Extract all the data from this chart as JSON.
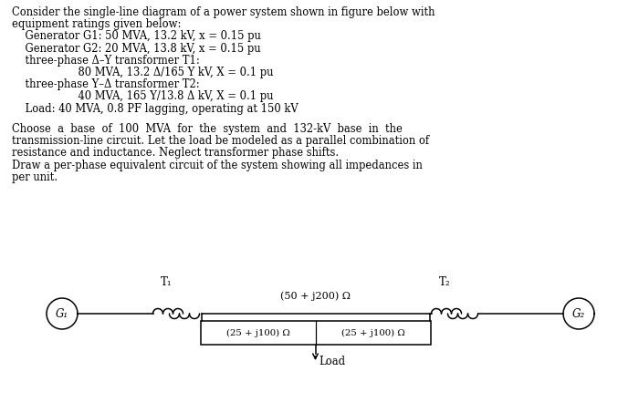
{
  "bg_color": "#ffffff",
  "text_color": "#000000",
  "fig_width": 7.0,
  "fig_height": 4.42,
  "dpi": 100,
  "text_block": {
    "lines": [
      {
        "text": "Consider the single-line diagram of a power system shown in figure below with",
        "indent": 0
      },
      {
        "text": "equipment ratings given below:",
        "indent": 0
      },
      {
        "text": "    Generator G1: 50 MVA, 13.2 kV, x = 0.15 pu",
        "indent": 0
      },
      {
        "text": "    Generator G2: 20 MVA, 13.8 kV, x = 0.15 pu",
        "indent": 0
      },
      {
        "text": "    three-phase Δ–Y transformer T1:",
        "indent": 0
      },
      {
        "text": "                    80 MVA, 13.2 Δ/165 Y kV, X = 0.1 pu",
        "indent": 0
      },
      {
        "text": "    three-phase Y–Δ transformer T2:",
        "indent": 0
      },
      {
        "text": "                    40 MVA, 165 Y/13.8 Δ kV, X = 0.1 pu",
        "indent": 0
      },
      {
        "text": "    Load: 40 MVA, 0.8 PF lagging, operating at 150 kV",
        "indent": 0
      }
    ],
    "para2": [
      "Choose  a  base  of  100  MVA  for  the  system  and  132-kV  base  in  the",
      "transmission-line circuit. Let the load be modeled as a parallel combination of",
      "resistance and inductance. Neglect transformer phase shifts.",
      "Draw a per-phase equivalent circuit of the system showing all impedances in",
      "per unit."
    ]
  },
  "diagram": {
    "G1_label": "G₁",
    "G2_label": "G₂",
    "T1_label": "T₁",
    "T2_label": "T₂",
    "line_impedance": "(50 + j200) Ω",
    "shunt1_impedance": "(25 + j100) Ω",
    "shunt2_impedance": "(25 + j100) Ω",
    "load_label": "Load"
  }
}
